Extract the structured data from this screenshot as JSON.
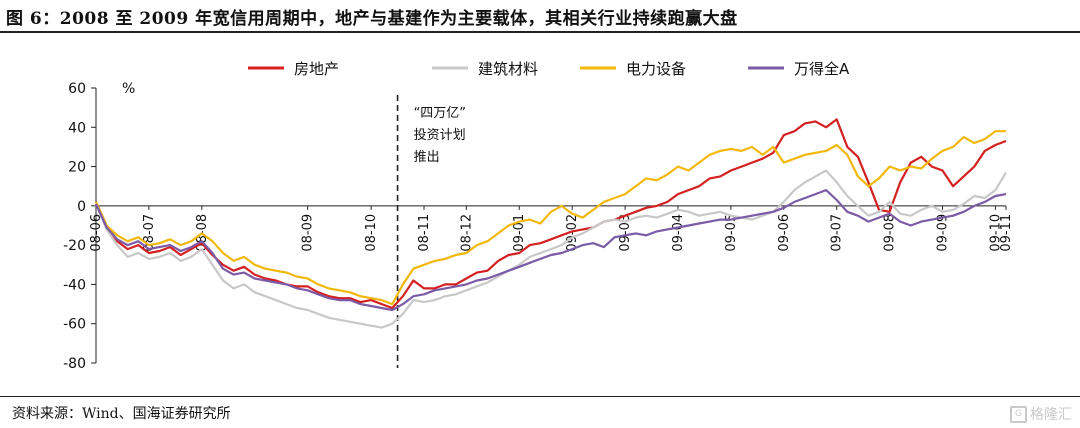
{
  "header": {
    "title": "图 6：2008 至 2009 年宽信用周期中，地产与基建作为主要载体，其相关行业持续跑赢大盘"
  },
  "footer": {
    "source": "资料来源：Wind、国海证券研究所",
    "watermark_icon": "watermark-logo-icon",
    "watermark_text": "格隆汇"
  },
  "chart_data": {
    "type": "line",
    "title": "",
    "ylabel": "%",
    "xlabel": "",
    "ylim": [
      -80,
      60
    ],
    "yticks": [
      60,
      40,
      20,
      0,
      -20,
      -40,
      -60,
      -80
    ],
    "xlim": [
      0,
      86
    ],
    "xticks": [
      {
        "label": "08-06",
        "x": 0
      },
      {
        "label": "08-07",
        "x": 5
      },
      {
        "label": "08-08",
        "x": 10
      },
      {
        "label": "08-09",
        "x": 20
      },
      {
        "label": "08-10",
        "x": 26
      },
      {
        "label": "08-11",
        "x": 31
      },
      {
        "label": "08-12",
        "x": 35
      },
      {
        "label": "09-01",
        "x": 40
      },
      {
        "label": "09-02",
        "x": 45
      },
      {
        "label": "09-03",
        "x": 50
      },
      {
        "label": "09-04",
        "x": 55
      },
      {
        "label": "09-05",
        "x": 60
      },
      {
        "label": "09-06",
        "x": 65
      },
      {
        "label": "09-07",
        "x": 70
      },
      {
        "label": "09-08",
        "x": 75
      },
      {
        "label": "09-09",
        "x": 80
      },
      {
        "label": "09-10",
        "x": 85
      },
      {
        "label": "09-11",
        "x": 86
      }
    ],
    "x": [
      0,
      1,
      2,
      3,
      4,
      5,
      6,
      7,
      8,
      9,
      10,
      11,
      12,
      13,
      14,
      15,
      16,
      17,
      18,
      19,
      20,
      21,
      22,
      23,
      24,
      25,
      26,
      27,
      28,
      29,
      30,
      31,
      32,
      33,
      34,
      35,
      36,
      37,
      38,
      39,
      40,
      41,
      42,
      43,
      44,
      45,
      46,
      47,
      48,
      49,
      50,
      51,
      52,
      53,
      54,
      55,
      56,
      57,
      58,
      59,
      60,
      61,
      62,
      63,
      64,
      65,
      66,
      67,
      68,
      69,
      70,
      71,
      72,
      73,
      74,
      75,
      76,
      77,
      78,
      79,
      80,
      81,
      82,
      83,
      84,
      85,
      86
    ],
    "series": [
      {
        "name": "房地产",
        "color": "#d42020",
        "values": [
          2,
          -10,
          -18,
          -22,
          -20,
          -24,
          -23,
          -21,
          -25,
          -22,
          -19,
          -25,
          -30,
          -33,
          -31,
          -35,
          -37,
          -38,
          -40,
          -41,
          -41,
          -44,
          -46,
          -47,
          -47,
          -49,
          -48,
          -50,
          -52,
          -46,
          -38,
          -42,
          -42,
          -40,
          -40,
          -37,
          -34,
          -33,
          -28,
          -25,
          -24,
          -20,
          -19,
          -17,
          -15,
          -13,
          -12,
          -11,
          -8,
          -7,
          -5,
          -3,
          -1,
          0,
          2,
          6,
          8,
          10,
          14,
          15,
          18,
          20,
          22,
          24,
          27,
          36,
          38,
          42,
          43,
          40,
          44,
          30,
          25,
          12,
          -2,
          -3,
          12,
          22,
          25,
          20,
          18,
          10,
          15,
          20,
          28,
          31,
          33
        ]
      },
      {
        "name": "建筑材料",
        "color": "#c8c8c8",
        "values": [
          1,
          -12,
          -20,
          -26,
          -24,
          -27,
          -26,
          -24,
          -28,
          -26,
          -22,
          -30,
          -38,
          -42,
          -40,
          -44,
          -46,
          -48,
          -50,
          -52,
          -53,
          -55,
          -57,
          -58,
          -59,
          -60,
          -61,
          -62,
          -60,
          -55,
          -48,
          -49,
          -48,
          -46,
          -45,
          -43,
          -41,
          -39,
          -36,
          -33,
          -30,
          -26,
          -24,
          -22,
          -20,
          -16,
          -14,
          -11,
          -8,
          -7,
          -8,
          -6,
          -5,
          -6,
          -4,
          -2,
          -3,
          -5,
          -4,
          -3,
          -5,
          -6,
          -7,
          -5,
          -3,
          2,
          8,
          12,
          15,
          18,
          12,
          5,
          0,
          -5,
          -3,
          2,
          -4,
          -5,
          -2,
          0,
          -3,
          -2,
          1,
          5,
          4,
          8,
          17
        ]
      },
      {
        "name": "电力设备",
        "color": "#f2b707",
        "values": [
          2,
          -10,
          -15,
          -18,
          -16,
          -20,
          -19,
          -17,
          -20,
          -18,
          -14,
          -18,
          -24,
          -28,
          -26,
          -30,
          -32,
          -33,
          -34,
          -36,
          -37,
          -40,
          -42,
          -43,
          -44,
          -46,
          -47,
          -48,
          -50,
          -40,
          -32,
          -30,
          -28,
          -27,
          -25,
          -24,
          -20,
          -18,
          -14,
          -10,
          -8,
          -7,
          -9,
          -3,
          0,
          -4,
          -6,
          -2,
          2,
          4,
          6,
          10,
          14,
          13,
          16,
          20,
          18,
          22,
          26,
          28,
          29,
          28,
          30,
          26,
          30,
          22,
          24,
          26,
          27,
          28,
          31,
          26,
          15,
          10,
          14,
          20,
          18,
          20,
          19,
          24,
          28,
          30,
          35,
          32,
          34,
          38,
          38
        ]
      },
      {
        "name": "万得全A",
        "color": "#7b5aa6",
        "values": [
          1,
          -11,
          -17,
          -20,
          -18,
          -22,
          -21,
          -20,
          -23,
          -21,
          -18,
          -24,
          -32,
          -35,
          -34,
          -37,
          -38,
          -39,
          -40,
          -42,
          -43,
          -45,
          -47,
          -48,
          -48,
          -50,
          -51,
          -52,
          -53,
          -50,
          -46,
          -45,
          -43,
          -42,
          -41,
          -40,
          -38,
          -37,
          -35,
          -33,
          -31,
          -29,
          -27,
          -25,
          -24,
          -22,
          -20,
          -19,
          -21,
          -16,
          -15,
          -14,
          -15,
          -13,
          -12,
          -11,
          -10,
          -9,
          -8,
          -7,
          -7,
          -6,
          -5,
          -4,
          -3,
          -1,
          2,
          4,
          6,
          8,
          3,
          -3,
          -5,
          -8,
          -6,
          -4,
          -8,
          -10,
          -8,
          -7,
          -6,
          -5,
          -3,
          0,
          2,
          5,
          6
        ]
      }
    ],
    "annotations": [
      {
        "lines": [
          "“四万亿”",
          "投资计划",
          "推出"
        ],
        "at_x": 28.5
      }
    ],
    "legend": "top-center",
    "grid": false
  }
}
